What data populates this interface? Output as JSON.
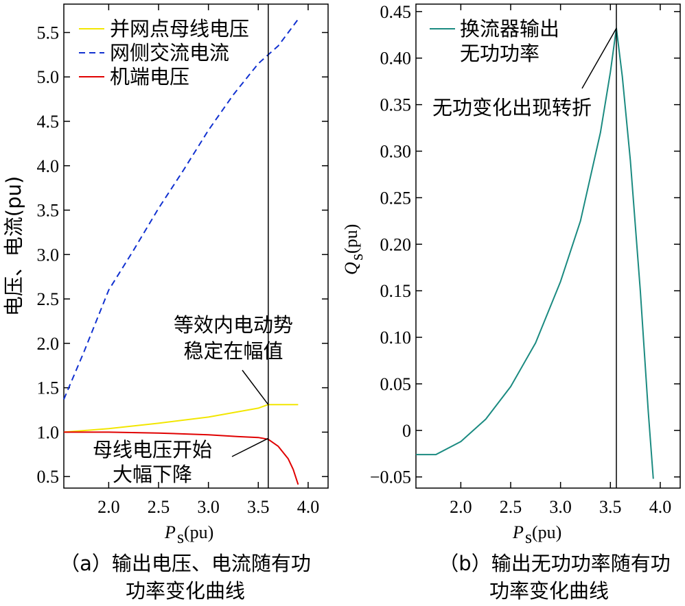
{
  "chart_data": [
    {
      "type": "line",
      "panel": "a",
      "caption_line1": "（a）输出电压、电流随有功",
      "caption_line2": "功率变化曲线",
      "ylabel": "电压、电流(pu)",
      "xlabel_main": "P",
      "xlabel_sub": "s",
      "xlabel_unit": "(pu)",
      "xlim": [
        1.55,
        4.2
      ],
      "ylim": [
        0.37,
        5.82
      ],
      "xticks": [
        "2.0",
        "2.5",
        "3.0",
        "3.5",
        "4.0"
      ],
      "xtick_values": [
        2.0,
        2.5,
        3.0,
        3.5,
        4.0
      ],
      "yticks": [
        "0.5",
        "1.0",
        "1.5",
        "2.0",
        "2.5",
        "3.0",
        "3.5",
        "4.0",
        "4.5",
        "5.0",
        "5.5"
      ],
      "ytick_values": [
        0.5,
        1.0,
        1.5,
        2.0,
        2.5,
        3.0,
        3.5,
        4.0,
        4.5,
        5.0,
        5.5
      ],
      "vline_x": 3.6,
      "legend_position": "top-left",
      "series": [
        {
          "name": "并网点母线电压",
          "color": "#f2e600",
          "dash": "solid",
          "x": [
            1.55,
            2.0,
            2.5,
            3.0,
            3.5,
            3.6,
            3.7,
            3.8,
            3.9
          ],
          "y": [
            1.0,
            1.04,
            1.1,
            1.17,
            1.27,
            1.31,
            1.31,
            1.31,
            1.31
          ]
        },
        {
          "name": "网侧交流电流",
          "color": "#1030d0",
          "dash": "dashed",
          "x": [
            1.55,
            1.75,
            2.0,
            2.25,
            2.5,
            2.75,
            3.0,
            3.25,
            3.5,
            3.6,
            3.7,
            3.8,
            3.9
          ],
          "y": [
            1.37,
            1.9,
            2.6,
            3.05,
            3.52,
            3.95,
            4.4,
            4.8,
            5.15,
            5.25,
            5.35,
            5.5,
            5.65
          ]
        },
        {
          "name": "机端电压",
          "color": "#e00000",
          "dash": "solid",
          "x": [
            1.55,
            2.0,
            2.5,
            3.0,
            3.3,
            3.5,
            3.6,
            3.7,
            3.8,
            3.85,
            3.9
          ],
          "y": [
            1.0,
            1.0,
            0.99,
            0.97,
            0.95,
            0.94,
            0.92,
            0.84,
            0.7,
            0.58,
            0.41
          ]
        }
      ],
      "annotations": [
        {
          "lines": [
            "等效内电动势",
            "稳定在幅值"
          ],
          "point": [
            3.6,
            1.31
          ]
        },
        {
          "lines": [
            "母线电压开始",
            "大幅下降"
          ],
          "point": [
            3.6,
            0.93
          ]
        }
      ]
    },
    {
      "type": "line",
      "panel": "b",
      "caption_line1": "（b）输出无功功率随有功",
      "caption_line2": "功率变化曲线",
      "ylabel_main": "Q",
      "ylabel_sub": "s",
      "ylabel_unit": "(pu)",
      "xlabel_main": "P",
      "xlabel_sub": "s",
      "xlabel_unit": "(pu)",
      "xlim": [
        1.55,
        4.2
      ],
      "ylim": [
        -0.062,
        0.458
      ],
      "xticks": [
        "2.0",
        "2.5",
        "3.0",
        "3.5",
        "4.0"
      ],
      "xtick_values": [
        2.0,
        2.5,
        3.0,
        3.5,
        4.0
      ],
      "yticks": [
        "−0.05",
        "0",
        "0.05",
        "0.10",
        "0.15",
        "0.20",
        "0.25",
        "0.30",
        "0.35",
        "0.40",
        "0.45"
      ],
      "ytick_values": [
        -0.05,
        0.0,
        0.05,
        0.1,
        0.15,
        0.2,
        0.25,
        0.3,
        0.35,
        0.4,
        0.45
      ],
      "vline_x": 3.56,
      "legend_position": "top-left",
      "series": [
        {
          "name_line1": "换流器输出",
          "name_line2": "无功功率",
          "color": "#1a8a80",
          "dash": "solid",
          "x": [
            1.55,
            1.75,
            2.0,
            2.25,
            2.5,
            2.75,
            3.0,
            3.2,
            3.4,
            3.5,
            3.56,
            3.62,
            3.7,
            3.8,
            3.88,
            3.93
          ],
          "y": [
            -0.026,
            -0.026,
            -0.012,
            0.012,
            0.047,
            0.094,
            0.16,
            0.225,
            0.32,
            0.385,
            0.432,
            0.38,
            0.29,
            0.15,
            0.02,
            -0.052
          ]
        }
      ],
      "annotations": [
        {
          "lines": [
            "无功变化出现转折"
          ],
          "point": [
            3.56,
            0.432
          ]
        }
      ]
    }
  ]
}
